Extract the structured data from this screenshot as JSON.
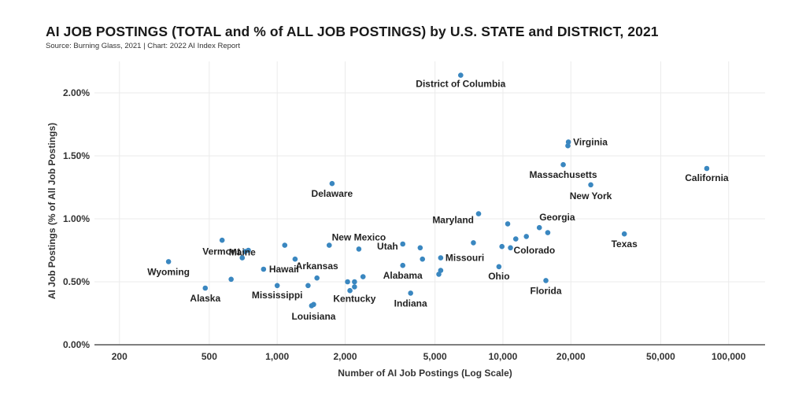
{
  "title": "AI JOB POSTINGS (TOTAL and % of ALL JOB POSTINGS) by U.S. STATE and DISTRICT, 2021",
  "subtitle": "Source: Burning Glass, 2021 | Chart: 2022 AI Index Report",
  "colors": {
    "point": "#3a87c0",
    "grid": "#ebebeb",
    "axis": "#555555"
  },
  "chart_data": {
    "type": "scatter",
    "title": "AI JOB POSTINGS (TOTAL and % of ALL JOB POSTINGS) by U.S. STATE and DISTRICT, 2021",
    "subtitle": "Source: Burning Glass, 2021 | Chart: 2022 AI Index Report",
    "xlabel": "Number of AI Job Postings (Log Scale)",
    "ylabel": "AI Job Postings (% of All Job Postings)",
    "x_scale": "log",
    "xlim": [
      155,
      145000
    ],
    "ylim": [
      0,
      2.25
    ],
    "x_ticks": [
      200,
      500,
      1000,
      2000,
      5000,
      10000,
      20000,
      50000,
      100000
    ],
    "x_tick_labels": [
      "200",
      "500",
      "1,000",
      "2,000",
      "5,000",
      "10,000",
      "20,000",
      "50,000",
      "100,000"
    ],
    "y_ticks": [
      0,
      0.5,
      1.0,
      1.5,
      2.0
    ],
    "y_tick_labels": [
      "0.00%",
      "0.50%",
      "1.00%",
      "1.50%",
      "2.00%"
    ],
    "grid": true,
    "points": [
      {
        "label": "District of Columbia",
        "x": 6500,
        "y": 2.14
      },
      {
        "label": "Virginia",
        "x": 19500,
        "y": 1.61
      },
      {
        "label": "",
        "x": 19400,
        "y": 1.58
      },
      {
        "label": "Massachusetts",
        "x": 18500,
        "y": 1.43
      },
      {
        "label": "California",
        "x": 80000,
        "y": 1.4
      },
      {
        "label": "New York",
        "x": 24500,
        "y": 1.27
      },
      {
        "label": "Delaware",
        "x": 1750,
        "y": 1.28
      },
      {
        "label": "Georgia",
        "x": 14500,
        "y": 0.93
      },
      {
        "label": "Maryland",
        "x": 7800,
        "y": 1.04
      },
      {
        "label": "Texas",
        "x": 34500,
        "y": 0.88
      },
      {
        "label": "Colorado",
        "x": 10800,
        "y": 0.77
      },
      {
        "label": "Missouri",
        "x": 5300,
        "y": 0.69
      },
      {
        "label": "Ohio",
        "x": 9600,
        "y": 0.62
      },
      {
        "label": "Florida",
        "x": 15500,
        "y": 0.51
      },
      {
        "label": "Utah",
        "x": 3600,
        "y": 0.8
      },
      {
        "label": "Alabama",
        "x": 3600,
        "y": 0.63
      },
      {
        "label": "Indiana",
        "x": 3900,
        "y": 0.41
      },
      {
        "label": "New Mexico",
        "x": 2300,
        "y": 0.76
      },
      {
        "label": "Arkansas",
        "x": 1500,
        "y": 0.53
      },
      {
        "label": "Kentucky",
        "x": 2200,
        "y": 0.46
      },
      {
        "label": "Louisiana",
        "x": 1450,
        "y": 0.32
      },
      {
        "label": "Mississippi",
        "x": 1000,
        "y": 0.47
      },
      {
        "label": "Hawaii",
        "x": 870,
        "y": 0.6
      },
      {
        "label": "Maine",
        "x": 700,
        "y": 0.69
      },
      {
        "label": "Vermont",
        "x": 720,
        "y": 0.74
      },
      {
        "label": "Wyoming",
        "x": 330,
        "y": 0.66
      },
      {
        "label": "Alaska",
        "x": 480,
        "y": 0.45
      },
      {
        "label": "",
        "x": 570,
        "y": 0.83
      },
      {
        "label": "",
        "x": 745,
        "y": 0.75
      },
      {
        "label": "",
        "x": 625,
        "y": 0.52
      },
      {
        "label": "",
        "x": 1080,
        "y": 0.79
      },
      {
        "label": "",
        "x": 1200,
        "y": 0.68
      },
      {
        "label": "",
        "x": 1370,
        "y": 0.47
      },
      {
        "label": "",
        "x": 1700,
        "y": 0.79
      },
      {
        "label": "",
        "x": 2050,
        "y": 0.5
      },
      {
        "label": "",
        "x": 2100,
        "y": 0.43
      },
      {
        "label": "",
        "x": 2200,
        "y": 0.5
      },
      {
        "label": "",
        "x": 2400,
        "y": 0.54
      },
      {
        "label": "",
        "x": 1420,
        "y": 0.31
      },
      {
        "label": "",
        "x": 4300,
        "y": 0.77
      },
      {
        "label": "",
        "x": 4400,
        "y": 0.68
      },
      {
        "label": "",
        "x": 5200,
        "y": 0.56
      },
      {
        "label": "",
        "x": 5300,
        "y": 0.59
      },
      {
        "label": "",
        "x": 7400,
        "y": 0.81
      },
      {
        "label": "",
        "x": 10500,
        "y": 0.96
      },
      {
        "label": "",
        "x": 9900,
        "y": 0.78
      },
      {
        "label": "",
        "x": 11400,
        "y": 0.84
      },
      {
        "label": "",
        "x": 12700,
        "y": 0.86
      },
      {
        "label": "",
        "x": 15800,
        "y": 0.89
      }
    ]
  }
}
